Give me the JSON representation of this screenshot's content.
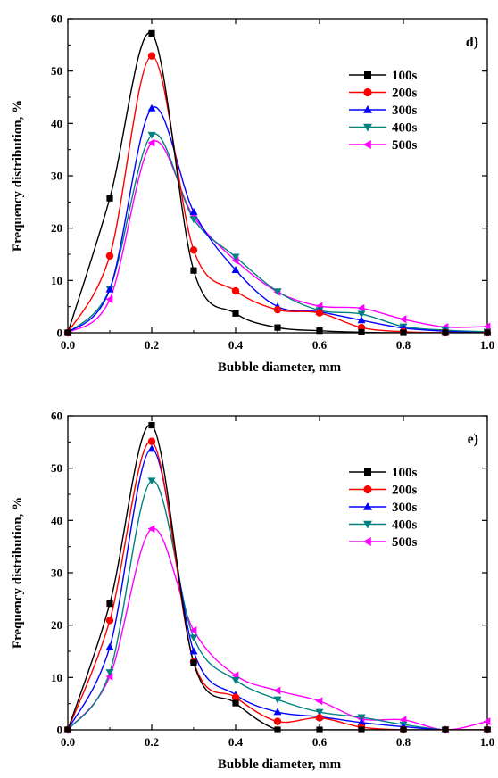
{
  "chart_data": [
    {
      "type": "line",
      "panel_label": "d)",
      "xlabel": "Bubble diameter, mm",
      "ylabel": "Frequency distribution, %",
      "xlim": [
        0.0,
        1.0
      ],
      "ylim": [
        0,
        60
      ],
      "x_ticks": [
        "0.0",
        "0.2",
        "0.4",
        "0.6",
        "0.8",
        "1.0"
      ],
      "y_ticks": [
        "0",
        "10",
        "20",
        "30",
        "40",
        "50",
        "60"
      ],
      "legend_position": "upper-right",
      "series": [
        {
          "name": "100s",
          "color": "#000000",
          "marker": "square",
          "x": [
            0.0,
            0.1,
            0.2,
            0.3,
            0.4,
            0.5,
            0.6,
            0.7,
            0.8,
            0.9,
            1.0
          ],
          "y": [
            0,
            25.7,
            57.2,
            11.9,
            3.7,
            1.0,
            0.4,
            0.1,
            0,
            0,
            0
          ]
        },
        {
          "name": "200s",
          "color": "#ff0000",
          "marker": "circle",
          "x": [
            0.0,
            0.1,
            0.2,
            0.3,
            0.4,
            0.5,
            0.6,
            0.7,
            0.8,
            0.9,
            1.0
          ],
          "y": [
            0,
            14.7,
            52.9,
            15.8,
            8.0,
            4.4,
            3.8,
            1.0,
            0.2,
            0,
            0
          ]
        },
        {
          "name": "300s",
          "color": "#0000ff",
          "marker": "triangle-up",
          "x": [
            0.0,
            0.1,
            0.2,
            0.3,
            0.4,
            0.5,
            0.6,
            0.7,
            0.8,
            0.9,
            1.0
          ],
          "y": [
            0,
            8.3,
            42.9,
            23.1,
            12.0,
            5.0,
            4.0,
            2.4,
            0.9,
            0.3,
            0
          ]
        },
        {
          "name": "400s",
          "color": "#008080",
          "marker": "triangle-down",
          "x": [
            0.0,
            0.1,
            0.2,
            0.3,
            0.4,
            0.5,
            0.6,
            0.7,
            0.8,
            0.9,
            1.0
          ],
          "y": [
            0,
            8.4,
            37.8,
            21.7,
            14.5,
            7.9,
            4.3,
            3.6,
            1.2,
            0.5,
            0.2
          ]
        },
        {
          "name": "500s",
          "color": "#ff00ff",
          "marker": "triangle-left",
          "x": [
            0.0,
            0.1,
            0.2,
            0.3,
            0.4,
            0.5,
            0.6,
            0.7,
            0.8,
            0.9,
            1.0
          ],
          "y": [
            0,
            6.4,
            36.3,
            22.2,
            13.8,
            7.8,
            5.1,
            4.7,
            2.6,
            1.1,
            1.2
          ]
        }
      ]
    },
    {
      "type": "line",
      "panel_label": "e)",
      "xlabel": "Bubble diameter, mm",
      "ylabel": "Frequency distribution, %",
      "xlim": [
        0.0,
        1.0
      ],
      "ylim": [
        0,
        60
      ],
      "x_ticks": [
        "0.0",
        "0.2",
        "0.4",
        "0.6",
        "0.8",
        "1.0"
      ],
      "y_ticks": [
        "0",
        "10",
        "20",
        "30",
        "40",
        "50",
        "60"
      ],
      "legend_position": "upper-right",
      "series": [
        {
          "name": "100s",
          "color": "#000000",
          "marker": "square",
          "x": [
            0.0,
            0.1,
            0.2,
            0.3,
            0.4,
            0.5,
            0.6,
            0.7,
            0.8,
            0.9,
            1.0
          ],
          "y": [
            0,
            24.1,
            58.2,
            12.8,
            5.1,
            0,
            0,
            0,
            0,
            0,
            0
          ]
        },
        {
          "name": "200s",
          "color": "#ff0000",
          "marker": "circle",
          "x": [
            0.0,
            0.1,
            0.2,
            0.3,
            0.4,
            0.5,
            0.6,
            0.7,
            0.8,
            0.9,
            1.0
          ],
          "y": [
            0,
            20.9,
            55.1,
            13.0,
            6.2,
            1.6,
            2.3,
            0.5,
            0,
            0,
            0
          ]
        },
        {
          "name": "300s",
          "color": "#0000ff",
          "marker": "triangle-up",
          "x": [
            0.0,
            0.1,
            0.2,
            0.3,
            0.4,
            0.5,
            0.6,
            0.7,
            0.8,
            0.9,
            1.0
          ],
          "y": [
            0,
            15.8,
            53.7,
            15.0,
            6.7,
            3.4,
            2.5,
            1.4,
            0.6,
            0,
            0
          ]
        },
        {
          "name": "400s",
          "color": "#008080",
          "marker": "triangle-down",
          "x": [
            0.0,
            0.1,
            0.2,
            0.3,
            0.4,
            0.5,
            0.6,
            0.7,
            0.8,
            0.9,
            1.0
          ],
          "y": [
            0,
            11.0,
            47.6,
            17.6,
            9.5,
            5.8,
            3.4,
            2.4,
            1.0,
            0,
            0
          ]
        },
        {
          "name": "500s",
          "color": "#ff00ff",
          "marker": "triangle-left",
          "x": [
            0.0,
            0.1,
            0.2,
            0.3,
            0.4,
            0.5,
            0.6,
            0.7,
            0.8,
            0.9,
            1.0
          ],
          "y": [
            0,
            10.2,
            38.4,
            19.0,
            10.4,
            7.5,
            5.5,
            2.1,
            1.9,
            0,
            1.6
          ]
        }
      ]
    }
  ]
}
